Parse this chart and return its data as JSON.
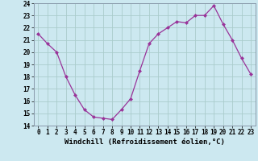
{
  "x": [
    0,
    1,
    2,
    3,
    4,
    5,
    6,
    7,
    8,
    9,
    10,
    11,
    12,
    13,
    14,
    15,
    16,
    17,
    18,
    19,
    20,
    21,
    22,
    23
  ],
  "y": [
    21.5,
    20.7,
    20.0,
    18.0,
    16.5,
    15.3,
    14.7,
    14.6,
    14.5,
    15.3,
    16.2,
    18.5,
    20.7,
    21.5,
    22.0,
    22.5,
    22.4,
    23.0,
    23.0,
    23.8,
    22.3,
    21.0,
    19.5,
    18.2
  ],
  "line_color": "#993399",
  "marker": "D",
  "marker_size": 2.0,
  "bg_color": "#cce8f0",
  "grid_color": "#aacccc",
  "xlabel": "Windchill (Refroidissement éolien,°C)",
  "ylabel_ticks": [
    14,
    15,
    16,
    17,
    18,
    19,
    20,
    21,
    22,
    23,
    24
  ],
  "xlim": [
    -0.5,
    23.5
  ],
  "ylim": [
    14,
    24
  ],
  "xtick_labels": [
    "0",
    "1",
    "2",
    "3",
    "4",
    "5",
    "6",
    "7",
    "8",
    "9",
    "10",
    "11",
    "12",
    "13",
    "14",
    "15",
    "16",
    "17",
    "18",
    "19",
    "20",
    "21",
    "22",
    "23"
  ],
  "tick_fontsize": 5.5,
  "xlabel_fontsize": 6.5,
  "linewidth": 0.9
}
